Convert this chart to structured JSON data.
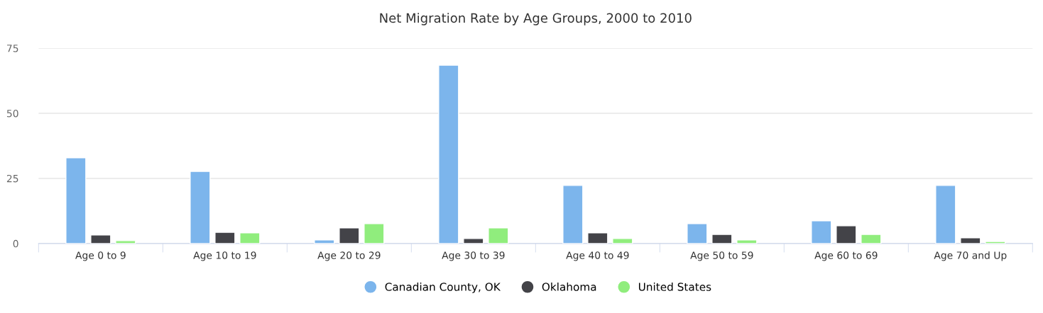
{
  "chart_data": {
    "type": "bar",
    "title": "Net Migration Rate by Age Groups, 2000 to 2010",
    "categories": [
      "Age 0 to 9",
      "Age 10 to 19",
      "Age 20 to 29",
      "Age 30 to 39",
      "Age 40 to 49",
      "Age 50 to 59",
      "Age 60 to 69",
      "Age 70 and Up"
    ],
    "series": [
      {
        "name": "Canadian County, OK",
        "color": "#7cb5ec",
        "values": [
          32.9,
          27.7,
          1.4,
          68.5,
          22.3,
          7.6,
          8.7,
          22.3
        ]
      },
      {
        "name": "Oklahoma",
        "color": "#434348",
        "values": [
          3.3,
          4.3,
          6.0,
          1.9,
          4.1,
          3.5,
          6.8,
          2.2
        ]
      },
      {
        "name": "United States",
        "color": "#90ed7d",
        "values": [
          1.1,
          4.1,
          7.6,
          6.0,
          1.9,
          1.4,
          3.5,
          0.8
        ]
      }
    ],
    "ylim": [
      0,
      75
    ],
    "yticks": [
      0,
      25,
      50,
      75
    ],
    "grid": "y",
    "legend": "bottom"
  }
}
